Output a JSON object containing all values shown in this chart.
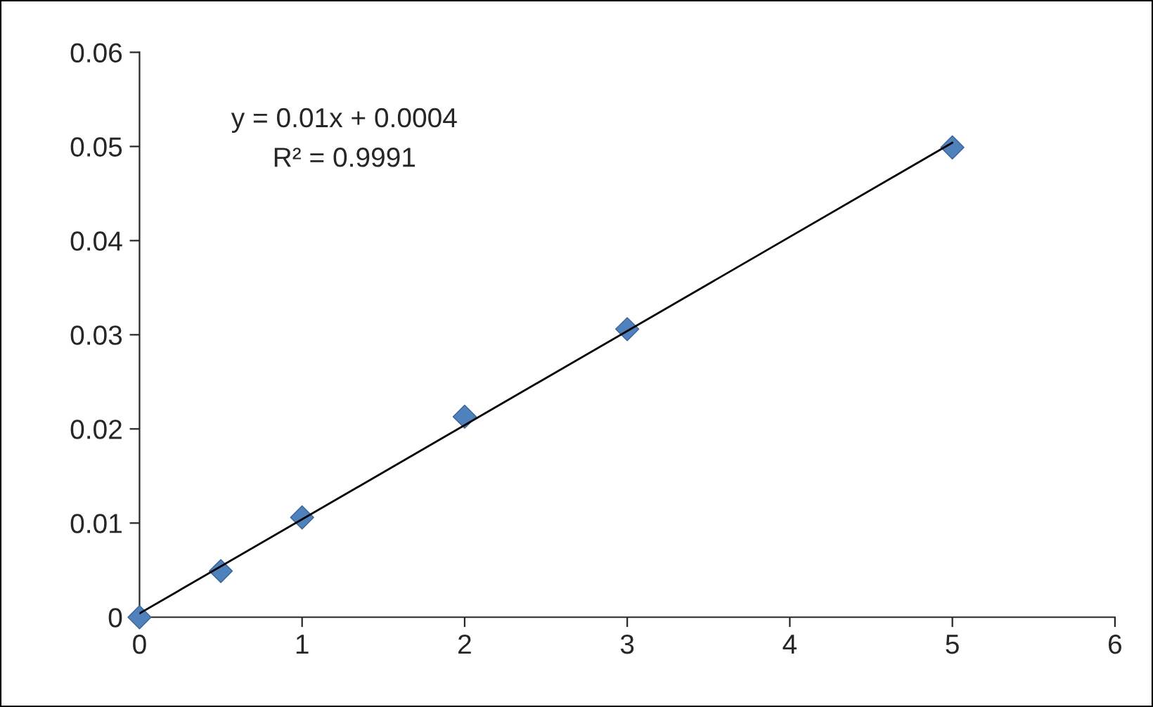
{
  "chart_data": {
    "type": "scatter",
    "series": [
      {
        "color": "#4f81bd",
        "marker": "diamond",
        "x": [
          0,
          0.5,
          1,
          2,
          3,
          5
        ],
        "values": [
          0,
          0.0049,
          0.0106,
          0.0213,
          0.0306,
          0.0499
        ]
      },
      {
        "type": "line",
        "color": "#000000",
        "marker": "none",
        "line_style": "solid",
        "x": [
          0,
          5
        ],
        "values": [
          0.0004,
          0.0504
        ]
      }
    ],
    "xlim": [
      0,
      6
    ],
    "xticks": [
      0,
      1,
      2,
      3,
      4,
      5,
      6
    ],
    "ylim": [
      0,
      0.06
    ],
    "yticks": [
      0,
      0.01,
      0.02,
      0.03,
      0.04,
      0.05,
      0.06
    ],
    "annotations": [
      "y = 0.01x + 0.0004",
      "R² = 0.9991"
    ],
    "grid": false,
    "legend": false
  }
}
